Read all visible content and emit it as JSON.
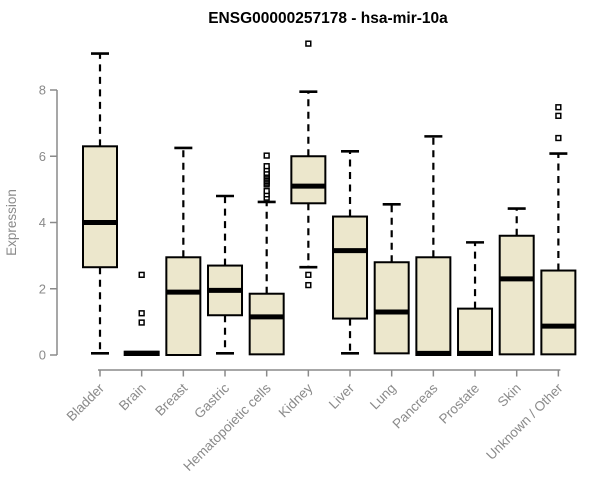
{
  "chart_data": {
    "type": "boxplot",
    "title": "ENSG00000257178 - hsa-mir-10a",
    "xlabel": "",
    "ylabel": "Expression",
    "ylim": [
      0,
      9.5
    ],
    "yticks": [
      0,
      2,
      4,
      6,
      8
    ],
    "grid": false,
    "legend": "none",
    "categories": [
      "Bladder",
      "Brain",
      "Breast",
      "Gastric",
      "Hematopoietic cells",
      "Kidney",
      "Liver",
      "Lung",
      "Pancreas",
      "Prostate",
      "Skin",
      "Unknown / Other"
    ],
    "series": [
      {
        "name": "Bladder",
        "whisker_low": 0.05,
        "q1": 2.65,
        "median": 4.0,
        "q3": 6.3,
        "whisker_high": 9.1,
        "outliers": []
      },
      {
        "name": "Brain",
        "whisker_low": 0.0,
        "q1": 0.0,
        "median": 0.05,
        "q3": 0.1,
        "whisker_high": 0.1,
        "outliers": [
          0.98,
          1.26,
          2.42
        ]
      },
      {
        "name": "Breast",
        "whisker_low": 0.0,
        "q1": 0.0,
        "median": 1.9,
        "q3": 2.95,
        "whisker_high": 6.25,
        "outliers": []
      },
      {
        "name": "Gastric",
        "whisker_low": 0.05,
        "q1": 1.2,
        "median": 1.95,
        "q3": 2.7,
        "whisker_high": 4.8,
        "outliers": []
      },
      {
        "name": "Hematopoietic cells",
        "whisker_low": 0.02,
        "q1": 0.02,
        "median": 1.15,
        "q3": 1.85,
        "whisker_high": 4.62,
        "outliers": [
          4.75,
          4.85,
          4.95,
          5.15,
          5.2,
          5.25,
          5.3,
          5.35,
          5.4,
          5.45,
          5.5,
          5.6,
          5.7,
          6.02
        ]
      },
      {
        "name": "Kidney",
        "whisker_low": 2.65,
        "q1": 4.58,
        "median": 5.1,
        "q3": 6.0,
        "whisker_high": 7.95,
        "outliers": [
          2.11,
          2.42,
          9.4
        ]
      },
      {
        "name": "Liver",
        "whisker_low": 0.05,
        "q1": 1.1,
        "median": 3.15,
        "q3": 4.18,
        "whisker_high": 6.15,
        "outliers": []
      },
      {
        "name": "Lung",
        "whisker_low": 0.05,
        "q1": 0.05,
        "median": 1.3,
        "q3": 2.8,
        "whisker_high": 4.55,
        "outliers": []
      },
      {
        "name": "Pancreas",
        "whisker_low": 0.0,
        "q1": 0.0,
        "median": 0.05,
        "q3": 2.95,
        "whisker_high": 6.6,
        "outliers": []
      },
      {
        "name": "Prostate",
        "whisker_low": 0.0,
        "q1": 0.0,
        "median": 0.05,
        "q3": 1.4,
        "whisker_high": 3.4,
        "outliers": []
      },
      {
        "name": "Skin",
        "whisker_low": 0.02,
        "q1": 0.02,
        "median": 2.3,
        "q3": 3.6,
        "whisker_high": 4.42,
        "outliers": []
      },
      {
        "name": "Unknown / Other",
        "whisker_low": 0.02,
        "q1": 0.02,
        "median": 0.87,
        "q3": 2.55,
        "whisker_high": 6.08,
        "outliers": [
          6.55,
          7.22,
          7.48
        ]
      }
    ]
  },
  "colors": {
    "background": "#ffffff",
    "box_fill": "#ece7cc",
    "box_stroke": "#000000",
    "median_stroke": "#000000",
    "whisker_stroke": "#000000",
    "outlier_stroke": "#000000",
    "outlier_fill": "#ffffff",
    "axis_line": "#8a8a8a",
    "tick_label": "#8a8a8a",
    "title_color": "#000000"
  },
  "icons": {}
}
